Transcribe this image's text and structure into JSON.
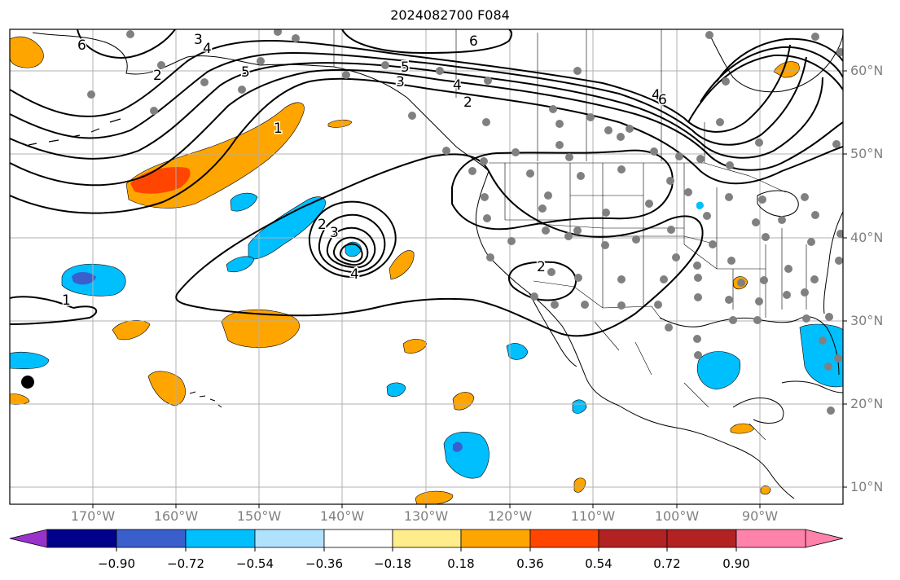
{
  "title": "2024082700 F084",
  "lat_labels": [
    "60°N",
    "50°N",
    "40°N",
    "30°N",
    "20°N",
    "10°N"
  ],
  "lon_labels": [
    "170°W",
    "160°W",
    "150°W",
    "140°W",
    "130°W",
    "120°W",
    "110°W",
    "100°W",
    "90°W"
  ],
  "colorbar": {
    "ticks": [
      "−0.90",
      "−0.72",
      "−0.54",
      "−0.36",
      "−0.18",
      "0.18",
      "0.36",
      "0.54",
      "0.72",
      "0.90"
    ],
    "colors": [
      "#9932cc",
      "#00008b",
      "#3a5fcd",
      "#00bfff",
      "#b0e2ff",
      "#ffffff",
      "#ffec8b",
      "#ffa500",
      "#ff4500",
      "#b22222",
      "#ff82ab"
    ]
  },
  "contour_labels": [
    "1",
    "2",
    "3",
    "4",
    "5",
    "6"
  ],
  "colors": {
    "positive_light": "#ffa500",
    "positive_strong": "#ff4500",
    "negative_light": "#00bfff",
    "negative_strong": "#3a5fcd",
    "station_marker": "#808080",
    "contour": "#000000",
    "grid": "#b0b0b0"
  }
}
